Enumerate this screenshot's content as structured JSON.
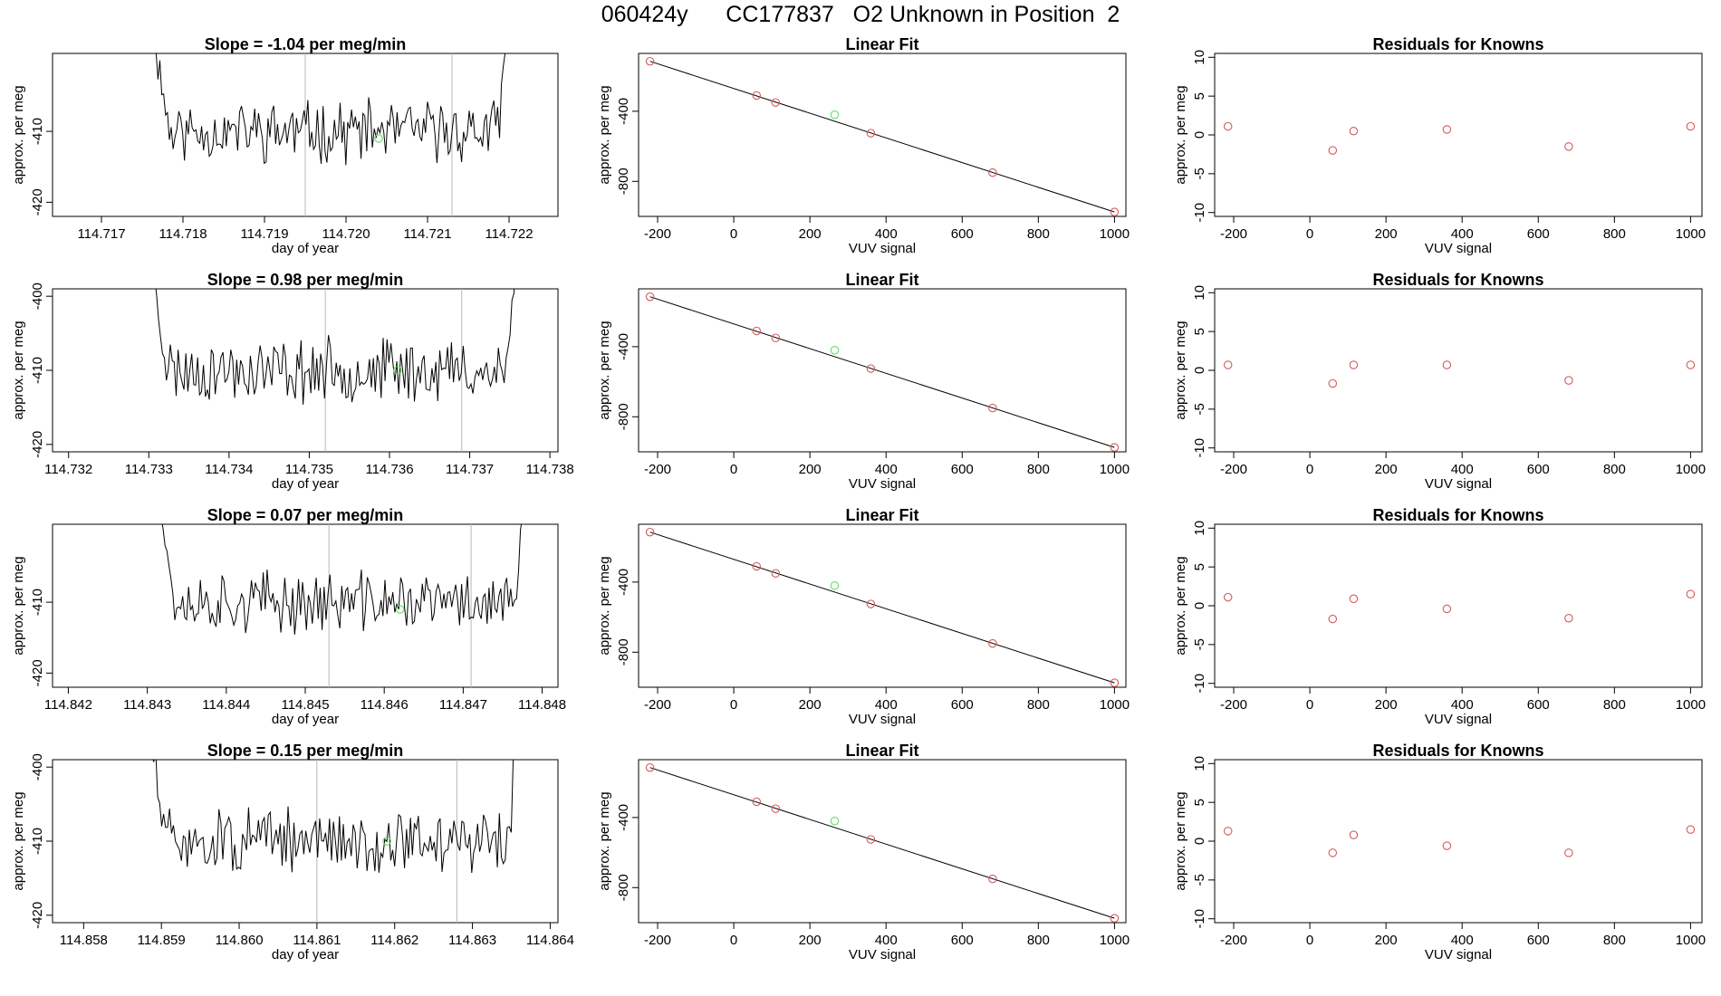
{
  "header": {
    "title": "060424y      CC177837   O2 Unknown in Position  2"
  },
  "rows": [
    {
      "time_panel": {
        "title": "Slope =  -1.04  per meg/min",
        "xlabel": "day of year",
        "ylabel": "approx. per meg",
        "xlim": [
          114.7164,
          114.7226
        ],
        "ylim": [
          -422,
          -399
        ],
        "xticks": [
          114.717,
          114.718,
          114.719,
          114.72,
          114.721,
          114.722
        ],
        "xtick_labels": [
          "114.717",
          "114.718",
          "114.719",
          "114.720",
          "114.721",
          "114.722"
        ],
        "yticks": [
          -410,
          -420
        ],
        "ytick_labels": [
          "-410",
          "-420"
        ],
        "t_start": 114.7176,
        "t_end": 114.722,
        "seed": 11,
        "vlines": [
          114.7195,
          114.7213
        ],
        "marker": [
          114.7204,
          -411
        ]
      },
      "fit_panel": {
        "title": "Linear Fit",
        "xlabel": "VUV signal",
        "ylabel": "approx. per meg",
        "xlim": [
          -250,
          1030
        ],
        "ylim": [
          -1000,
          -70
        ],
        "xticks": [
          -200,
          0,
          200,
          400,
          600,
          800,
          1000
        ],
        "xtick_labels": [
          "-200",
          "0",
          "200",
          "400",
          "600",
          "800",
          "1000"
        ],
        "yticks": [
          -400,
          -800
        ],
        "ytick_labels": [
          "-400",
          "-800"
        ],
        "line": [
          [
            -220,
            -115
          ],
          [
            1000,
            -975
          ]
        ],
        "knowns": [
          [
            -220,
            -115
          ],
          [
            60,
            -310
          ],
          [
            110,
            -350
          ],
          [
            360,
            -525
          ],
          [
            680,
            -750
          ],
          [
            1000,
            -975
          ]
        ],
        "unknown": [
          265,
          -420
        ]
      },
      "resid_panel": {
        "title": "Residuals for Knowns",
        "xlabel": "VUV signal",
        "ylabel": "approx. per meg",
        "xlim": [
          -250,
          1030
        ],
        "ylim": [
          -10.5,
          10.5
        ],
        "xticks": [
          -200,
          0,
          200,
          400,
          600,
          800,
          1000
        ],
        "xtick_labels": [
          "-200",
          "0",
          "200",
          "400",
          "600",
          "800",
          "1000"
        ],
        "yticks": [
          10,
          5,
          0,
          -5,
          -10
        ],
        "ytick_labels": [
          "10",
          "5",
          "0",
          "-5",
          "-10"
        ],
        "points": [
          [
            -215,
            1.1
          ],
          [
            60,
            -2.0
          ],
          [
            115,
            0.5
          ],
          [
            360,
            0.7
          ],
          [
            680,
            -1.5
          ],
          [
            1000,
            1.1
          ]
        ]
      }
    },
    {
      "time_panel": {
        "title": "Slope =  0.98  per meg/min",
        "xlabel": "day of year",
        "ylabel": "approx. per meg",
        "xlim": [
          114.7318,
          114.7381
        ],
        "ylim": [
          -421,
          -399
        ],
        "xticks": [
          114.732,
          114.733,
          114.734,
          114.735,
          114.736,
          114.737,
          114.738
        ],
        "xtick_labels": [
          "114.732",
          "114.733",
          "114.734",
          "114.735",
          "114.736",
          "114.737",
          "114.738"
        ],
        "yticks": [
          -400,
          -410,
          -420
        ],
        "ytick_labels": [
          "-400",
          "-410",
          "-420"
        ],
        "t_start": 114.733,
        "t_end": 114.7376,
        "seed": 23,
        "vlines": [
          114.7352,
          114.7369
        ],
        "marker": [
          114.7361,
          -410
        ]
      },
      "fit_panel": {
        "title": "Linear Fit",
        "xlabel": "VUV signal",
        "ylabel": "approx. per meg",
        "xlim": [
          -250,
          1030
        ],
        "ylim": [
          -1000,
          -70
        ],
        "xticks": [
          -200,
          0,
          200,
          400,
          600,
          800,
          1000
        ],
        "xtick_labels": [
          "-200",
          "0",
          "200",
          "400",
          "600",
          "800",
          "1000"
        ],
        "yticks": [
          -400,
          -800
        ],
        "ytick_labels": [
          "-400",
          "-800"
        ],
        "line": [
          [
            -220,
            -115
          ],
          [
            1000,
            -975
          ]
        ],
        "knowns": [
          [
            -220,
            -115
          ],
          [
            60,
            -310
          ],
          [
            110,
            -350
          ],
          [
            360,
            -525
          ],
          [
            680,
            -750
          ],
          [
            1000,
            -975
          ]
        ],
        "unknown": [
          265,
          -420
        ]
      },
      "resid_panel": {
        "title": "Residuals for Knowns",
        "xlabel": "VUV signal",
        "ylabel": "approx. per meg",
        "xlim": [
          -250,
          1030
        ],
        "ylim": [
          -10.5,
          10.5
        ],
        "xticks": [
          -200,
          0,
          200,
          400,
          600,
          800,
          1000
        ],
        "xtick_labels": [
          "-200",
          "0",
          "200",
          "400",
          "600",
          "800",
          "1000"
        ],
        "yticks": [
          10,
          5,
          0,
          -5,
          -10
        ],
        "ytick_labels": [
          "10",
          "5",
          "0",
          "-5",
          "-10"
        ],
        "points": [
          [
            -215,
            0.7
          ],
          [
            60,
            -1.7
          ],
          [
            115,
            0.7
          ],
          [
            360,
            0.7
          ],
          [
            680,
            -1.3
          ],
          [
            1000,
            0.7
          ]
        ]
      }
    },
    {
      "time_panel": {
        "title": "Slope =  0.07  per meg/min",
        "xlabel": "day of year",
        "ylabel": "approx. per meg",
        "xlim": [
          114.8418,
          114.8482
        ],
        "ylim": [
          -422,
          -399
        ],
        "xticks": [
          114.842,
          114.843,
          114.844,
          114.845,
          114.846,
          114.847,
          114.848
        ],
        "xtick_labels": [
          "114.842",
          "114.843",
          "114.844",
          "114.845",
          "114.846",
          "114.847",
          "114.848"
        ],
        "yticks": [
          -410,
          -420
        ],
        "ytick_labels": [
          "-410",
          "-420"
        ],
        "t_start": 114.8431,
        "t_end": 114.8478,
        "seed": 37,
        "vlines": [
          114.8453,
          114.8471
        ],
        "marker": [
          114.8462,
          -411
        ]
      },
      "fit_panel": {
        "title": "Linear Fit",
        "xlabel": "VUV signal",
        "ylabel": "approx. per meg",
        "xlim": [
          -250,
          1030
        ],
        "ylim": [
          -1000,
          -70
        ],
        "xticks": [
          -200,
          0,
          200,
          400,
          600,
          800,
          1000
        ],
        "xtick_labels": [
          "-200",
          "0",
          "200",
          "400",
          "600",
          "800",
          "1000"
        ],
        "yticks": [
          -400,
          -800
        ],
        "ytick_labels": [
          "-400",
          "-800"
        ],
        "line": [
          [
            -220,
            -115
          ],
          [
            1000,
            -975
          ]
        ],
        "knowns": [
          [
            -220,
            -115
          ],
          [
            60,
            -310
          ],
          [
            110,
            -350
          ],
          [
            360,
            -525
          ],
          [
            680,
            -750
          ],
          [
            1000,
            -975
          ]
        ],
        "unknown": [
          265,
          -420
        ]
      },
      "resid_panel": {
        "title": "Residuals for Knowns",
        "xlabel": "VUV signal",
        "ylabel": "approx. per meg",
        "xlim": [
          -250,
          1030
        ],
        "ylim": [
          -10.5,
          10.5
        ],
        "xticks": [
          -200,
          0,
          200,
          400,
          600,
          800,
          1000
        ],
        "xtick_labels": [
          "-200",
          "0",
          "200",
          "400",
          "600",
          "800",
          "1000"
        ],
        "yticks": [
          10,
          5,
          0,
          -5,
          -10
        ],
        "ytick_labels": [
          "10",
          "5",
          "0",
          "-5",
          "-10"
        ],
        "points": [
          [
            -215,
            1.1
          ],
          [
            60,
            -1.7
          ],
          [
            115,
            0.9
          ],
          [
            360,
            -0.4
          ],
          [
            680,
            -1.6
          ],
          [
            1000,
            1.5
          ]
        ]
      }
    },
    {
      "time_panel": {
        "title": "Slope =  0.15  per meg/min",
        "xlabel": "day of year",
        "ylabel": "approx. per meg",
        "xlim": [
          114.8576,
          114.8641
        ],
        "ylim": [
          -421,
          -399
        ],
        "xticks": [
          114.858,
          114.859,
          114.86,
          114.861,
          114.862,
          114.863,
          114.864
        ],
        "xtick_labels": [
          "114.858",
          "114.859",
          "114.860",
          "114.861",
          "114.862",
          "114.863",
          "114.864"
        ],
        "yticks": [
          -400,
          -410,
          -420
        ],
        "ytick_labels": [
          "-400",
          "-410",
          "-420"
        ],
        "t_start": 114.8588,
        "t_end": 114.8636,
        "seed": 51,
        "vlines": [
          114.861,
          114.8628
        ],
        "marker": [
          114.8619,
          -410
        ]
      },
      "fit_panel": {
        "title": "Linear Fit",
        "xlabel": "VUV signal",
        "ylabel": "approx. per meg",
        "xlim": [
          -250,
          1030
        ],
        "ylim": [
          -1000,
          -70
        ],
        "xticks": [
          -200,
          0,
          200,
          400,
          600,
          800,
          1000
        ],
        "xtick_labels": [
          "-200",
          "0",
          "200",
          "400",
          "600",
          "800",
          "1000"
        ],
        "yticks": [
          -400,
          -800
        ],
        "ytick_labels": [
          "-400",
          "-800"
        ],
        "line": [
          [
            -220,
            -115
          ],
          [
            1000,
            -975
          ]
        ],
        "knowns": [
          [
            -220,
            -115
          ],
          [
            60,
            -310
          ],
          [
            110,
            -350
          ],
          [
            360,
            -525
          ],
          [
            680,
            -750
          ],
          [
            1000,
            -975
          ]
        ],
        "unknown": [
          265,
          -420
        ]
      },
      "resid_panel": {
        "title": "Residuals for Knowns",
        "xlabel": "VUV signal",
        "ylabel": "approx. per meg",
        "xlim": [
          -250,
          1030
        ],
        "ylim": [
          -10.5,
          10.5
        ],
        "xticks": [
          -200,
          0,
          200,
          400,
          600,
          800,
          1000
        ],
        "xtick_labels": [
          "-200",
          "0",
          "200",
          "400",
          "600",
          "800",
          "1000"
        ],
        "yticks": [
          10,
          5,
          0,
          -5,
          -10
        ],
        "ytick_labels": [
          "10",
          "5",
          "0",
          "-5",
          "-10"
        ],
        "points": [
          [
            -215,
            1.3
          ],
          [
            60,
            -1.5
          ],
          [
            115,
            0.8
          ],
          [
            360,
            -0.6
          ],
          [
            680,
            -1.5
          ],
          [
            1000,
            1.5
          ]
        ]
      }
    }
  ],
  "colors": {
    "known": "#d45a5a",
    "unknown": "#5fe05f",
    "vline": "#b8b8b8",
    "line": "#000000"
  },
  "chart_data": {
    "type": "line",
    "title": "060424y      CC177837   O2 Unknown in Position  2",
    "panels": [
      {
        "row": 1,
        "kind": "time-series",
        "title": "Slope =  -1.04  per meg/min",
        "xlabel": "day of year",
        "ylabel": "approx. per meg",
        "xlim": [
          114.7164,
          114.7226
        ],
        "ylim": [
          -422,
          -399
        ]
      },
      {
        "row": 1,
        "kind": "scatter+line",
        "title": "Linear Fit",
        "xlabel": "VUV signal",
        "ylabel": "approx. per meg",
        "knowns": [
          [
            -220,
            -115
          ],
          [
            60,
            -310
          ],
          [
            110,
            -350
          ],
          [
            360,
            -525
          ],
          [
            680,
            -750
          ],
          [
            1000,
            -975
          ]
        ],
        "unknown": [
          265,
          -420
        ]
      },
      {
        "row": 1,
        "kind": "scatter",
        "title": "Residuals for Knowns",
        "xlabel": "VUV signal",
        "ylabel": "approx. per meg",
        "points": [
          [
            -215,
            1.1
          ],
          [
            60,
            -2.0
          ],
          [
            115,
            0.5
          ],
          [
            360,
            0.7
          ],
          [
            680,
            -1.5
          ],
          [
            1000,
            1.1
          ]
        ]
      },
      {
        "row": 2,
        "kind": "time-series",
        "title": "Slope =  0.98  per meg/min",
        "xlabel": "day of year",
        "ylabel": "approx. per meg",
        "xlim": [
          114.7318,
          114.7381
        ],
        "ylim": [
          -421,
          -399
        ]
      },
      {
        "row": 2,
        "kind": "scatter",
        "title": "Residuals for Knowns",
        "points": [
          [
            -215,
            0.7
          ],
          [
            60,
            -1.7
          ],
          [
            115,
            0.7
          ],
          [
            360,
            0.7
          ],
          [
            680,
            -1.3
          ],
          [
            1000,
            0.7
          ]
        ]
      },
      {
        "row": 3,
        "kind": "time-series",
        "title": "Slope =  0.07  per meg/min",
        "xlim": [
          114.8418,
          114.8482
        ],
        "ylim": [
          -422,
          -399
        ]
      },
      {
        "row": 3,
        "kind": "scatter",
        "title": "Residuals for Knowns",
        "points": [
          [
            -215,
            1.1
          ],
          [
            60,
            -1.7
          ],
          [
            115,
            0.9
          ],
          [
            360,
            -0.4
          ],
          [
            680,
            -1.6
          ],
          [
            1000,
            1.5
          ]
        ]
      },
      {
        "row": 4,
        "kind": "time-series",
        "title": "Slope =  0.15  per meg/min",
        "xlim": [
          114.8576,
          114.8641
        ],
        "ylim": [
          -421,
          -399
        ]
      },
      {
        "row": 4,
        "kind": "scatter",
        "title": "Residuals for Knowns",
        "points": [
          [
            -215,
            1.3
          ],
          [
            60,
            -1.5
          ],
          [
            115,
            0.8
          ],
          [
            360,
            -0.6
          ],
          [
            680,
            -1.5
          ],
          [
            1000,
            1.5
          ]
        ]
      }
    ]
  }
}
